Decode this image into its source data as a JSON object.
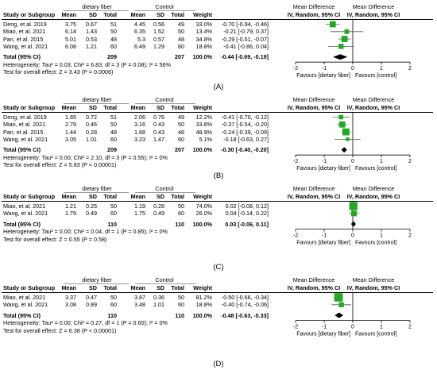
{
  "headers": {
    "group_exp": "dietary fiber",
    "group_ctl": "Control",
    "study": "Study or Subgroup",
    "mean": "Mean",
    "sd": "SD",
    "total": "Total",
    "weight": "Weight",
    "md_title": "Mean Difference",
    "md_sub": "IV, Random, 95% CI",
    "total_label": "Total (95% CI)",
    "favours_left": "Favours [dietary fiber]",
    "favours_right": "Favours [control]"
  },
  "colors": {
    "square": "#22a822",
    "diamond": "#000000"
  },
  "chart_data": [
    {
      "type": "forest",
      "panel_label": "(A)",
      "studies": [
        {
          "name": "Deng, et al. 2019",
          "e_mean": "3.75",
          "e_sd": "0.67",
          "e_n": "51",
          "c_mean": "4.45",
          "c_sd": "0.56",
          "c_n": "49",
          "weight": "33.0%",
          "ci": "-0.70 [-0.94, -0.46]",
          "md": -0.7,
          "lo": -0.94,
          "hi": -0.46,
          "w": 33.0
        },
        {
          "name": "Miao, et al. 2021",
          "e_mean": "6.14",
          "e_sd": "1.43",
          "e_n": "50",
          "c_mean": "6.35",
          "c_sd": "1.52",
          "c_n": "50",
          "weight": "13.4%",
          "ci": "-0.21 [-0.79, 0.37]",
          "md": -0.21,
          "lo": -0.79,
          "hi": 0.37,
          "w": 13.4
        },
        {
          "name": "Pan, et al. 2015",
          "e_mean": "5.01",
          "e_sd": "0.53",
          "e_n": "48",
          "c_mean": "5.3",
          "c_sd": "0.57",
          "c_n": "48",
          "weight": "34.8%",
          "ci": "-0.29 [-0.51, -0.07]",
          "md": -0.29,
          "lo": -0.51,
          "hi": -0.07,
          "w": 34.8
        },
        {
          "name": "Wang, et al. 2021",
          "e_mean": "6.08",
          "e_sd": "1.21",
          "e_n": "60",
          "c_mean": "6.49",
          "c_sd": "1.29",
          "c_n": "60",
          "weight": "18.8%",
          "ci": "-0.41 [-0.86, 0.04]",
          "md": -0.41,
          "lo": -0.86,
          "hi": 0.04,
          "w": 18.8
        }
      ],
      "total": {
        "e_n": "209",
        "c_n": "207",
        "weight": "100.0%",
        "ci": "-0.44 [-0.69, -0.19]",
        "md": -0.44,
        "lo": -0.69,
        "hi": -0.19
      },
      "heterogeneity": "Heterogeneity: Tau² = 0.03; Chi² = 6.83, df = 3 (P = 0.08); I² = 56%",
      "overall": "Test for overall effect: Z = 3.43 (P = 0.0006)",
      "xlim": [
        -2,
        2
      ],
      "ticks": [
        -2,
        -1,
        0,
        1,
        2
      ]
    },
    {
      "type": "forest",
      "panel_label": "(B)",
      "studies": [
        {
          "name": "Deng, et al. 2019",
          "e_mean": "1.65",
          "e_sd": "0.72",
          "e_n": "51",
          "c_mean": "2.06",
          "c_sd": "0.76",
          "c_n": "49",
          "weight": "12.2%",
          "ci": "-0.41 [-0.70, -0.12]",
          "md": -0.41,
          "lo": -0.7,
          "hi": -0.12,
          "w": 12.2
        },
        {
          "name": "Miao, et al. 2021",
          "e_mean": "2.79",
          "e_sd": "0.46",
          "e_n": "50",
          "c_mean": "3.16",
          "c_sd": "0.43",
          "c_n": "50",
          "weight": "33.8%",
          "ci": "-0.37 [-0.54, -0.20]",
          "md": -0.37,
          "lo": -0.54,
          "hi": -0.2,
          "w": 33.8
        },
        {
          "name": "Pan, et al. 2015",
          "e_mean": "1.44",
          "e_sd": "0.28",
          "e_n": "48",
          "c_mean": "1.68",
          "c_sd": "0.43",
          "c_n": "48",
          "weight": "48.9%",
          "ci": "-0.24 [-0.39, -0.09]",
          "md": -0.24,
          "lo": -0.39,
          "hi": -0.09,
          "w": 48.9
        },
        {
          "name": "Wang, et al. 2021",
          "e_mean": "3.05",
          "e_sd": "1.01",
          "e_n": "60",
          "c_mean": "3.23",
          "c_sd": "1.47",
          "c_n": "60",
          "weight": "5.1%",
          "ci": "-0.18 [-0.63, 0.27]",
          "md": -0.18,
          "lo": -0.63,
          "hi": 0.27,
          "w": 5.1
        }
      ],
      "total": {
        "e_n": "209",
        "c_n": "207",
        "weight": "100.0%",
        "ci": "-0.30 [-0.40, -0.20]",
        "md": -0.3,
        "lo": -0.4,
        "hi": -0.2
      },
      "heterogeneity": "Heterogeneity: Tau² = 0.00; Chi² = 2.10, df = 3 (P = 0.55); I² = 0%",
      "overall": "Test for overall effect: Z = 5.83 (P < 0.00001)",
      "xlim": [
        -2,
        2
      ],
      "ticks": [
        -2,
        -1,
        0,
        1,
        2
      ]
    },
    {
      "type": "forest",
      "panel_label": "(C)",
      "studies": [
        {
          "name": "Miao, et al. 2021",
          "e_mean": "1.21",
          "e_sd": "0.25",
          "e_n": "50",
          "c_mean": "1.19",
          "c_sd": "0.28",
          "c_n": "50",
          "weight": "74.0%",
          "ci": "0.02 [-0.08, 0.12]",
          "md": 0.02,
          "lo": -0.08,
          "hi": 0.12,
          "w": 74.0
        },
        {
          "name": "Wang, et al. 2021",
          "e_mean": "1.79",
          "e_sd": "0.49",
          "e_n": "60",
          "c_mean": "1.75",
          "c_sd": "0.49",
          "c_n": "60",
          "weight": "26.0%",
          "ci": "0.04 [-0.14, 0.22]",
          "md": 0.04,
          "lo": -0.14,
          "hi": 0.22,
          "w": 26.0
        }
      ],
      "total": {
        "e_n": "110",
        "c_n": "110",
        "weight": "100.0%",
        "ci": "0.03 [-0.06, 0.11]",
        "md": 0.03,
        "lo": -0.06,
        "hi": 0.11
      },
      "heterogeneity": "Heterogeneity: Tau² = 0.00; Chi² = 0.04, df = 1 (P = 0.85); I² = 0%",
      "overall": "Test for overall effect: Z = 0.55 (P = 0.58)",
      "xlim": [
        -2,
        2
      ],
      "ticks": [
        -2,
        -1,
        0,
        1,
        2
      ]
    },
    {
      "type": "forest",
      "panel_label": "(D)",
      "studies": [
        {
          "name": "Miao, et al. 2021",
          "e_mean": "3.37",
          "e_sd": "0.47",
          "e_n": "50",
          "c_mean": "3.87",
          "c_sd": "0.36",
          "c_n": "50",
          "weight": "81.2%",
          "ci": "-0.50 [-0.66, -0.34]",
          "md": -0.5,
          "lo": -0.66,
          "hi": -0.34,
          "w": 81.2
        },
        {
          "name": "Wang, et al. 2021",
          "e_mean": "3.08",
          "e_sd": "0.89",
          "e_n": "60",
          "c_mean": "3.48",
          "c_sd": "1.01",
          "c_n": "60",
          "weight": "18.8%",
          "ci": "-0.40 [-0.74, -0.06]",
          "md": -0.4,
          "lo": -0.74,
          "hi": -0.06,
          "w": 18.8
        }
      ],
      "total": {
        "e_n": "110",
        "c_n": "110",
        "weight": "100.0%",
        "ci": "-0.48 [-0.63, -0.33]",
        "md": -0.48,
        "lo": -0.63,
        "hi": -0.33
      },
      "heterogeneity": "Heterogeneity: Tau² = 0.00; Chi² = 0.27, df = 1 (P = 0.60); I² = 0%",
      "overall": "Test for overall effect: Z = 6.38 (P < 0.00001)",
      "xlim": [
        -2,
        2
      ],
      "ticks": [
        -2,
        -1,
        0,
        1,
        2
      ]
    }
  ]
}
